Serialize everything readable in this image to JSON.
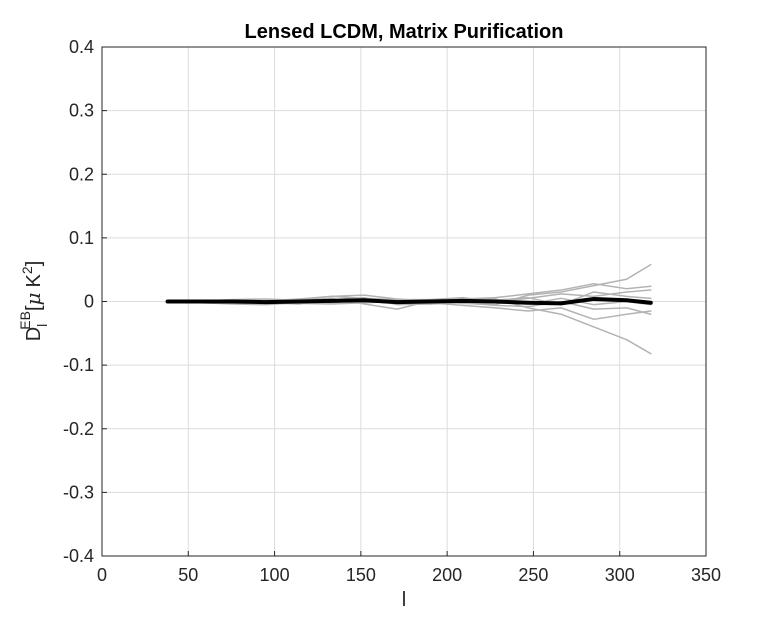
{
  "chart_data": {
    "type": "line",
    "title": "Lensed LCDM, Matrix Purification",
    "xlabel": "l",
    "ylabel": {
      "base": "D",
      "subscript": "l",
      "superscript": "EB",
      "units_open": "[",
      "units_symbol": "μ",
      "units_unit": "K",
      "units_power": "2",
      "units_close": "]"
    },
    "xlim": [
      0,
      350
    ],
    "ylim": [
      -0.4,
      0.4
    ],
    "xticks": [
      0,
      50,
      100,
      150,
      200,
      250,
      300,
      350
    ],
    "xtick_labels": [
      "0",
      "50",
      "100",
      "150",
      "200",
      "250",
      "300",
      "350"
    ],
    "yticks": [
      -0.4,
      -0.3,
      -0.2,
      -0.1,
      0,
      0.1,
      0.2,
      0.3,
      0.4
    ],
    "ytick_labels": [
      "-0.4",
      "-0.3",
      "-0.2",
      "-0.1",
      "0",
      "0.1",
      "0.2",
      "0.3",
      "0.4"
    ],
    "grid": true,
    "x": [
      38,
      57,
      76,
      95,
      114,
      133,
      152,
      171,
      190,
      209,
      228,
      247,
      266,
      285,
      304,
      318
    ],
    "series": [
      {
        "style": "realization",
        "color": "#b3b3b3",
        "values": [
          0.0,
          0.002,
          0.001,
          -0.002,
          0.003,
          0.008,
          0.01,
          0.004,
          0.001,
          -0.003,
          -0.005,
          0.01,
          0.015,
          0.025,
          0.035,
          0.058
        ]
      },
      {
        "style": "realization",
        "color": "#b3b3b3",
        "values": [
          0.0,
          -0.001,
          -0.003,
          -0.002,
          -0.004,
          0.003,
          0.006,
          -0.005,
          -0.004,
          0.002,
          0.004,
          -0.01,
          -0.02,
          -0.04,
          -0.06,
          -0.082
        ]
      },
      {
        "style": "realization",
        "color": "#b3b3b3",
        "values": [
          0.0,
          0.001,
          0.003,
          0.004,
          0.002,
          0.005,
          -0.004,
          -0.012,
          0.001,
          0.004,
          0.006,
          0.012,
          0.018,
          0.028,
          0.02,
          0.024
        ]
      },
      {
        "style": "realization",
        "color": "#b3b3b3",
        "values": [
          0.0,
          -0.002,
          -0.004,
          -0.005,
          -0.002,
          0.001,
          0.004,
          0.002,
          -0.002,
          -0.006,
          -0.01,
          -0.015,
          -0.01,
          -0.028,
          -0.02,
          -0.015
        ]
      },
      {
        "style": "realization",
        "color": "#b3b3b3",
        "values": [
          0.0,
          0.0,
          0.002,
          0.001,
          0.004,
          0.008,
          0.005,
          0.003,
          0.003,
          0.006,
          0.0,
          0.005,
          0.012,
          0.008,
          0.015,
          0.018
        ]
      },
      {
        "style": "realization",
        "color": "#b3b3b3",
        "values": [
          0.0,
          -0.001,
          -0.001,
          0.0,
          -0.003,
          -0.004,
          -0.002,
          0.0,
          -0.004,
          -0.002,
          -0.006,
          -0.008,
          0.0,
          -0.012,
          -0.01,
          -0.02
        ]
      },
      {
        "style": "realization",
        "color": "#b3b3b3",
        "values": [
          0.0,
          0.001,
          0.0,
          -0.003,
          0.001,
          0.002,
          0.0,
          -0.002,
          0.003,
          0.001,
          0.002,
          0.006,
          -0.005,
          0.015,
          0.008,
          0.005
        ]
      },
      {
        "style": "realization",
        "color": "#b3b3b3",
        "values": [
          0.0,
          0.0,
          -0.002,
          -0.001,
          -0.001,
          -0.002,
          0.002,
          0.001,
          -0.001,
          -0.001,
          -0.002,
          -0.004,
          0.005,
          -0.005,
          0.0,
          -0.005
        ]
      },
      {
        "style": "mean",
        "color": "#000000",
        "values": [
          0.0,
          0.0,
          0.0,
          -0.001,
          0.0,
          0.001,
          0.002,
          -0.001,
          0.0,
          0.001,
          0.0,
          -0.002,
          -0.003,
          0.004,
          0.002,
          -0.002
        ]
      }
    ]
  }
}
